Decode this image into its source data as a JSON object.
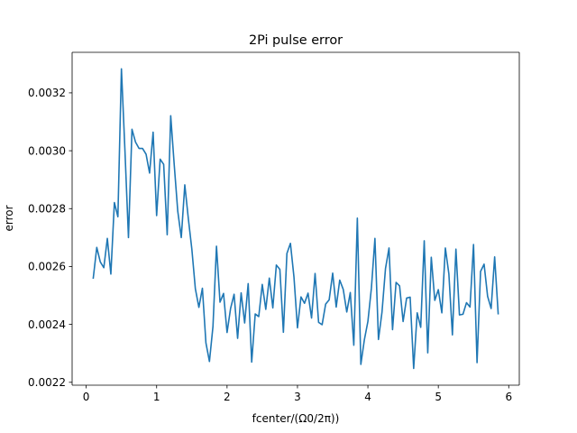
{
  "chart_data": {
    "type": "line",
    "title": "2Pi pulse error",
    "xlabel": "fcenter/(Ω0/2π))",
    "ylabel": "error",
    "xlim": [
      -0.2,
      6.15
    ],
    "ylim": [
      0.00219,
      0.00334
    ],
    "grid": false,
    "x_ticks": [
      0,
      1,
      2,
      3,
      4,
      5,
      6
    ],
    "y_ticks": [
      0.0022,
      0.0024,
      0.0026,
      0.0028,
      0.003,
      0.0032
    ],
    "y_tick_labels": [
      "0.0022",
      "0.0024",
      "0.0026",
      "0.0028",
      "0.0030",
      "0.0032"
    ],
    "color": "#1f77b4",
    "series": [
      {
        "x": [
          0.1,
          0.15,
          0.2,
          0.25,
          0.3,
          0.35,
          0.4,
          0.45,
          0.5,
          0.55,
          0.6,
          0.65,
          0.7,
          0.75,
          0.8,
          0.85,
          0.9,
          0.95,
          1.0,
          1.05,
          1.1,
          1.15,
          1.2,
          1.25,
          1.3,
          1.35,
          1.4,
          1.45,
          1.5,
          1.55,
          1.6,
          1.65,
          1.7,
          1.75,
          1.8,
          1.85,
          1.9,
          1.95,
          2.0,
          2.05,
          2.1,
          2.15,
          2.2,
          2.25,
          2.3,
          2.35,
          2.4,
          2.45,
          2.5,
          2.55,
          2.6,
          2.65,
          2.7,
          2.75,
          2.8,
          2.85,
          2.9,
          2.95,
          3.0,
          3.05,
          3.1,
          3.15,
          3.2,
          3.25,
          3.3,
          3.35,
          3.4,
          3.45,
          3.5,
          3.55,
          3.6,
          3.65,
          3.7,
          3.75,
          3.8,
          3.85,
          3.9,
          3.95,
          4.0,
          4.05,
          4.1,
          4.15,
          4.2,
          4.25,
          4.3,
          4.35,
          4.4,
          4.45,
          4.5,
          4.55,
          4.6,
          4.65,
          4.7,
          4.75,
          4.8,
          4.85,
          4.9,
          4.95,
          5.0,
          5.05,
          5.1,
          5.15,
          5.2,
          5.25,
          5.3,
          5.35,
          5.4,
          5.45,
          5.5,
          5.55,
          5.6,
          5.65,
          5.7,
          5.75,
          5.8,
          5.85
        ],
        "values": [
          0.00256,
          0.002666,
          0.002616,
          0.002596,
          0.002697,
          0.002574,
          0.002821,
          0.002772,
          0.003283,
          0.003001,
          0.0027,
          0.003074,
          0.00303,
          0.003008,
          0.003008,
          0.002988,
          0.002923,
          0.003064,
          0.002776,
          0.002971,
          0.002953,
          0.00271,
          0.003121,
          0.002951,
          0.002791,
          0.0027,
          0.002882,
          0.002766,
          0.00266,
          0.002523,
          0.002459,
          0.002525,
          0.002336,
          0.002272,
          0.002393,
          0.00267,
          0.002477,
          0.002507,
          0.002372,
          0.002455,
          0.002504,
          0.002352,
          0.002509,
          0.002405,
          0.002541,
          0.00227,
          0.002436,
          0.002427,
          0.002538,
          0.002452,
          0.00256,
          0.002457,
          0.002605,
          0.00259,
          0.002373,
          0.002645,
          0.00268,
          0.002564,
          0.002388,
          0.002495,
          0.002473,
          0.002508,
          0.002422,
          0.002576,
          0.002407,
          0.002399,
          0.00247,
          0.002485,
          0.002577,
          0.00246,
          0.002553,
          0.002521,
          0.002443,
          0.00251,
          0.002328,
          0.002767,
          0.002262,
          0.002347,
          0.00241,
          0.002526,
          0.002697,
          0.002348,
          0.002442,
          0.002593,
          0.002664,
          0.002382,
          0.002545,
          0.002533,
          0.00241,
          0.002491,
          0.002494,
          0.002248,
          0.00244,
          0.00239,
          0.002689,
          0.002302,
          0.002632,
          0.002483,
          0.00252,
          0.00244,
          0.002664,
          0.002574,
          0.002364,
          0.00266,
          0.002433,
          0.002435,
          0.002475,
          0.00246,
          0.002676,
          0.002268,
          0.002583,
          0.002608,
          0.002497,
          0.002455,
          0.002633,
          0.002437
        ]
      }
    ]
  }
}
